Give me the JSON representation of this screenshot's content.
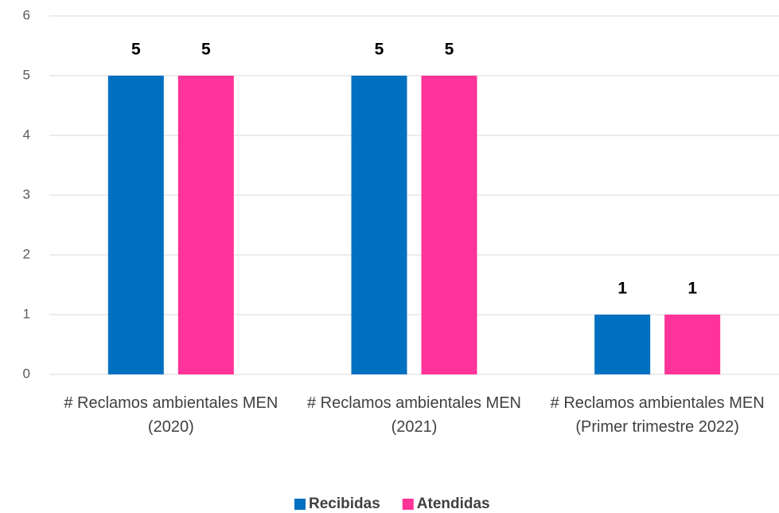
{
  "chart_data": {
    "type": "bar",
    "categories": [
      "# Reclamos ambientales MEN (2020)",
      "# Reclamos ambientales MEN (2021)",
      "# Reclamos ambientales MEN (Primer trimestre 2022)"
    ],
    "series": [
      {
        "name": "Recibidas",
        "color": "#0070c0",
        "values": [
          5,
          5,
          1
        ]
      },
      {
        "name": "Atendidas",
        "color": "#ff3399",
        "values": [
          5,
          5,
          1
        ]
      }
    ],
    "ylim": [
      0,
      6
    ],
    "yticks": [
      0,
      1,
      2,
      3,
      4,
      5,
      6
    ],
    "grid": true,
    "legend": "bottom"
  }
}
